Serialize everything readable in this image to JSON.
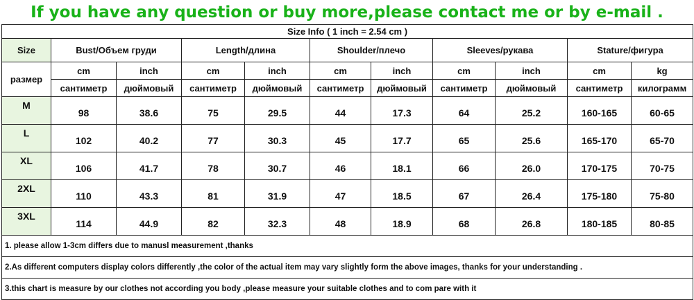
{
  "banner": "If you have any question or buy more,please contact me or by e-mail .",
  "size_info": "Size Info ( 1 inch = 2.54 cm )",
  "header": {
    "size": "Size",
    "size_ru": "размер",
    "groups": [
      "Bust/Объем груди",
      "Length/длина",
      "Shoulder/плечо",
      "Sleeves/рукава",
      "Stature/фигура"
    ],
    "units": [
      "cm",
      "inch",
      "cm",
      "inch",
      "cm",
      "inch",
      "cm",
      "inch",
      "cm",
      "kg"
    ],
    "units_ru": [
      "сантиметр",
      "дюймовый",
      "сантиметр",
      "дюймовый",
      "сантиметр",
      "дюймовый",
      "сантиметр",
      "дюймовый",
      "сантиметр",
      "килограмм"
    ]
  },
  "rows": [
    {
      "size": "M",
      "cells": [
        "98",
        "38.6",
        "75",
        "29.5",
        "44",
        "17.3",
        "64",
        "25.2",
        "160-165",
        "60-65"
      ]
    },
    {
      "size": "L",
      "cells": [
        "102",
        "40.2",
        "77",
        "30.3",
        "45",
        "17.7",
        "65",
        "25.6",
        "165-170",
        "65-70"
      ]
    },
    {
      "size": "XL",
      "cells": [
        "106",
        "41.7",
        "78",
        "30.7",
        "46",
        "18.1",
        "66",
        "26.0",
        "170-175",
        "70-75"
      ]
    },
    {
      "size": "2XL",
      "cells": [
        "110",
        "43.3",
        "81",
        "31.9",
        "47",
        "18.5",
        "67",
        "26.4",
        "175-180",
        "75-80"
      ]
    },
    {
      "size": "3XL",
      "cells": [
        "114",
        "44.9",
        "82",
        "32.3",
        "48",
        "18.9",
        "68",
        "26.8",
        "180-185",
        "80-85"
      ]
    }
  ],
  "notes": [
    "1. please allow 1-3cm differs due to manusl measurement ,thanks",
    "2.As different computers display colors differently ,the color of the actual item may vary slightly form the above images, thanks for your understanding .",
    "3.this chart is measure by our clothes not according you body ,please measure your suitable clothes and to com pare with it"
  ],
  "colors": {
    "banner": "#19b219",
    "size_cell_bg": "#e8f5e0",
    "border": "#222222"
  }
}
